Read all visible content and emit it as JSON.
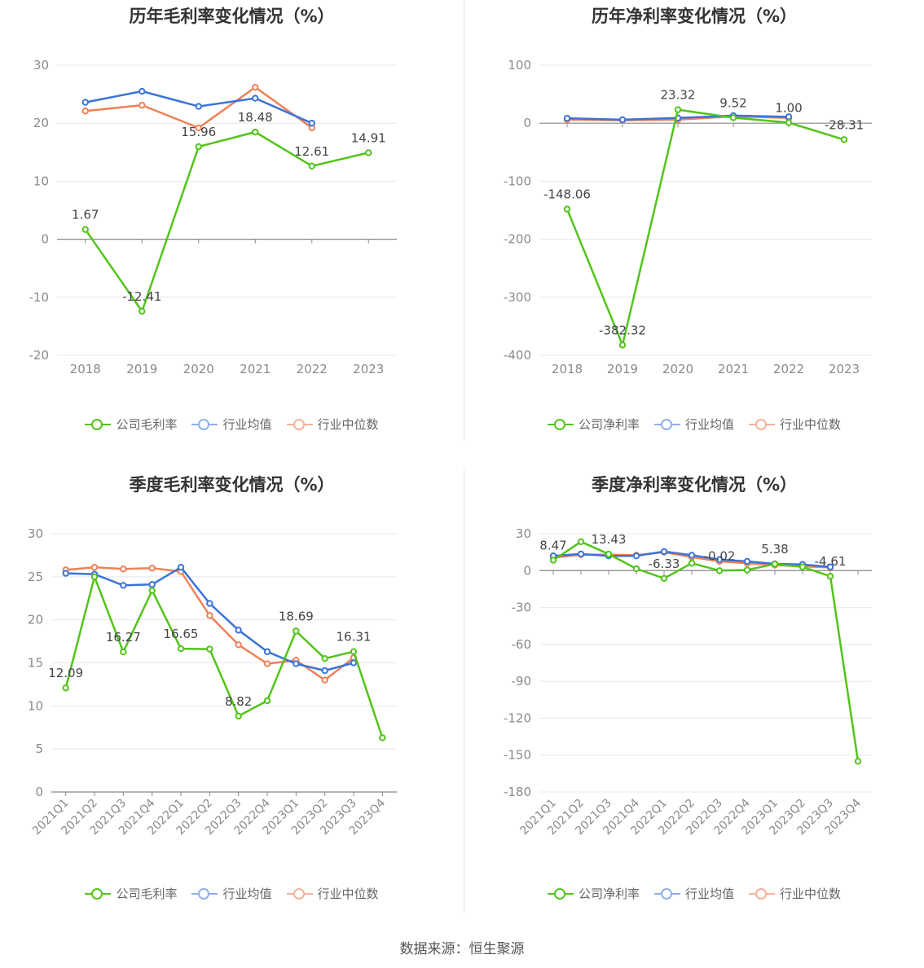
{
  "source": "数据来源：恒生聚源",
  "colors": {
    "company": "#52c41a",
    "avg": "#3b74d9",
    "median": "#ee8157"
  },
  "legend_faded": {
    "avg": "#8fb0ec",
    "median": "#f4b29a"
  },
  "chart_data": [
    {
      "id": "annual-gross",
      "type": "line",
      "title": "历年毛利率变化情况（%）",
      "categories": [
        "2018",
        "2019",
        "2020",
        "2021",
        "2022",
        "2023"
      ],
      "ylim": [
        -20,
        30
      ],
      "yticks": [
        -20,
        -10,
        0,
        10,
        20,
        30
      ],
      "series": [
        {
          "name": "公司毛利率",
          "key": "company",
          "values": [
            1.67,
            -12.41,
            15.96,
            18.48,
            12.61,
            14.91
          ],
          "labels": [
            "1.67",
            "-12.41",
            "15.96",
            "18.48",
            "12.61",
            "14.91"
          ]
        },
        {
          "name": "行业均值",
          "key": "avg",
          "values": [
            23.6,
            25.5,
            22.9,
            24.3,
            20.0,
            null
          ]
        },
        {
          "name": "行业中位数",
          "key": "median",
          "values": [
            22.1,
            23.1,
            19.2,
            26.2,
            19.2,
            null
          ]
        }
      ]
    },
    {
      "id": "annual-net",
      "type": "line",
      "title": "历年净利率变化情况（%）",
      "categories": [
        "2018",
        "2019",
        "2020",
        "2021",
        "2022",
        "2023"
      ],
      "ylim": [
        -400,
        100
      ],
      "yticks": [
        -400,
        -300,
        -200,
        -100,
        0,
        100
      ],
      "series": [
        {
          "name": "公司净利率",
          "key": "company",
          "values": [
            -148.06,
            -382.32,
            23.32,
            9.52,
            1.0,
            -28.31
          ],
          "labels": [
            "-148.06",
            "-382.32",
            "23.32",
            "9.52",
            "1.00",
            "-28.31"
          ]
        },
        {
          "name": "行业均值",
          "key": "avg",
          "values": [
            8.5,
            6.0,
            9.0,
            13.0,
            11.0,
            null
          ]
        },
        {
          "name": "行业中位数",
          "key": "median",
          "values": [
            6.0,
            5.0,
            6.0,
            12.0,
            9.0,
            null
          ]
        }
      ]
    },
    {
      "id": "quarterly-gross",
      "type": "line",
      "title": "季度毛利率变化情况（%）",
      "categories": [
        "2021Q1",
        "2021Q2",
        "2021Q3",
        "2021Q4",
        "2022Q1",
        "2022Q2",
        "2022Q3",
        "2022Q4",
        "2023Q1",
        "2023Q2",
        "2023Q3",
        "2023Q4"
      ],
      "ylim": [
        0,
        30
      ],
      "yticks": [
        0,
        5,
        10,
        15,
        20,
        25,
        30
      ],
      "series": [
        {
          "name": "公司毛利率",
          "key": "company",
          "values": [
            12.09,
            25.0,
            16.27,
            23.4,
            16.65,
            16.6,
            8.82,
            10.6,
            18.69,
            15.5,
            16.31,
            6.3
          ],
          "labels": [
            "12.09",
            "",
            "16.27",
            "",
            "16.65",
            "",
            "8.82",
            "",
            "18.69",
            "",
            "16.31",
            ""
          ]
        },
        {
          "name": "行业均值",
          "key": "avg",
          "values": [
            25.4,
            25.3,
            24.0,
            24.1,
            26.1,
            21.9,
            18.8,
            16.3,
            14.9,
            14.1,
            15.0,
            null
          ]
        },
        {
          "name": "行业中位数",
          "key": "median",
          "values": [
            25.8,
            26.1,
            25.9,
            26.0,
            25.6,
            20.5,
            17.1,
            14.9,
            15.3,
            13.0,
            15.6,
            null
          ]
        }
      ]
    },
    {
      "id": "quarterly-net",
      "type": "line",
      "title": "季度净利率变化情况（%）",
      "categories": [
        "2021Q1",
        "2021Q2",
        "2021Q3",
        "2021Q4",
        "2022Q1",
        "2022Q2",
        "2022Q3",
        "2022Q4",
        "2023Q1",
        "2023Q2",
        "2023Q3",
        "2023Q4"
      ],
      "ylim": [
        -180,
        30
      ],
      "yticks": [
        -180,
        -150,
        -120,
        -90,
        -60,
        -30,
        0,
        30
      ],
      "series": [
        {
          "name": "公司净利率",
          "key": "company",
          "values": [
            8.47,
            23.5,
            13.43,
            1.5,
            -6.33,
            6.0,
            -0.02,
            0.5,
            5.38,
            3.0,
            -4.61,
            -155.0
          ],
          "labels": [
            "8.47",
            "",
            "13.43",
            "",
            "-6.33",
            "",
            "-0.02",
            "",
            "5.38",
            "",
            "-4.61",
            ""
          ]
        },
        {
          "name": "行业均值",
          "key": "avg",
          "values": [
            12.0,
            13.5,
            12.0,
            12.0,
            15.5,
            12.5,
            9.0,
            7.5,
            5.5,
            5.0,
            3.0,
            null
          ]
        },
        {
          "name": "行业中位数",
          "key": "median",
          "values": [
            10.5,
            13.0,
            13.0,
            12.5,
            15.0,
            11.0,
            7.5,
            6.0,
            4.5,
            3.5,
            2.5,
            null
          ]
        }
      ]
    }
  ]
}
